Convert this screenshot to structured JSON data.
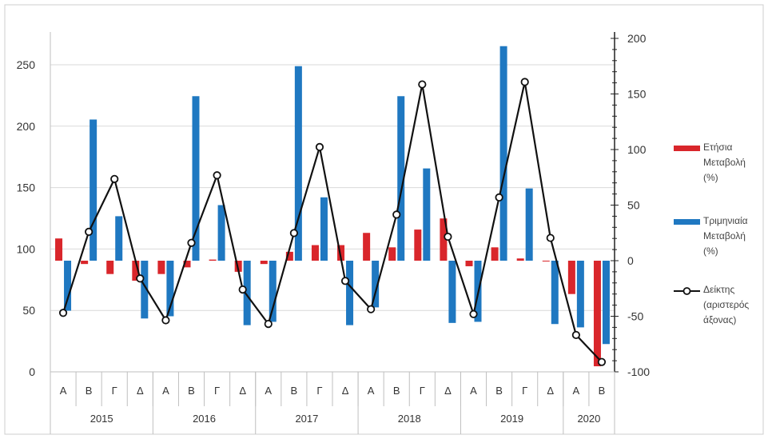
{
  "chart_data": {
    "type": "bar",
    "quarters": [
      "Α",
      "Β",
      "Γ",
      "Δ",
      "Α",
      "Β",
      "Γ",
      "Δ",
      "Α",
      "Β",
      "Γ",
      "Δ",
      "Α",
      "Β",
      "Γ",
      "Δ",
      "Α",
      "Β",
      "Γ",
      "Δ",
      "Α",
      "Β"
    ],
    "years": [
      {
        "label": "2015",
        "span": 4
      },
      {
        "label": "2016",
        "span": 4
      },
      {
        "label": "2017",
        "span": 4
      },
      {
        "label": "2018",
        "span": 4
      },
      {
        "label": "2019",
        "span": 4
      },
      {
        "label": "2020",
        "span": 2
      }
    ],
    "left_axis": {
      "min": 0,
      "max": 250,
      "ticks": [
        0,
        50,
        100,
        150,
        200,
        250
      ]
    },
    "right_axis": {
      "min": -100,
      "max": 200,
      "ticks": [
        -100,
        -50,
        0,
        50,
        100,
        150,
        200
      ]
    },
    "series": [
      {
        "name": "Ετήσια Μεταβολή (%)",
        "legend_lines": [
          "Ετήσια",
          "Μεταβολή",
          "(%)"
        ],
        "axis": "right",
        "kind": "bar",
        "color": "#d9262b",
        "values": [
          20,
          -3,
          -12,
          -18,
          -12,
          -6,
          1,
          -10,
          -3,
          8,
          14,
          14,
          25,
          12,
          28,
          38,
          -5,
          12,
          2,
          0,
          -30,
          -95
        ]
      },
      {
        "name": "Τριμηνιαία Μεταβολή (%)",
        "legend_lines": [
          "Τριμηνιαία",
          "Μεταβολή",
          "(%)"
        ],
        "axis": "right",
        "kind": "bar",
        "color": "#1f78c1",
        "values": [
          -45,
          127,
          40,
          -52,
          -50,
          148,
          50,
          -58,
          -55,
          175,
          57,
          -58,
          -42,
          148,
          83,
          -56,
          -55,
          193,
          65,
          -57,
          -60,
          -75
        ]
      },
      {
        "name": "Δείκτης (αριστερός άξονας)",
        "legend_lines": [
          "Δείκτης",
          "(αριστερός",
          "άξονας)"
        ],
        "axis": "left",
        "kind": "line",
        "color": "#111111",
        "values": [
          48,
          114,
          157,
          76,
          42,
          105,
          160,
          67,
          39,
          113,
          183,
          74,
          51,
          128,
          234,
          110,
          47,
          142,
          236,
          109,
          30,
          8
        ]
      }
    ],
    "grid": true,
    "legend_position": "right"
  }
}
